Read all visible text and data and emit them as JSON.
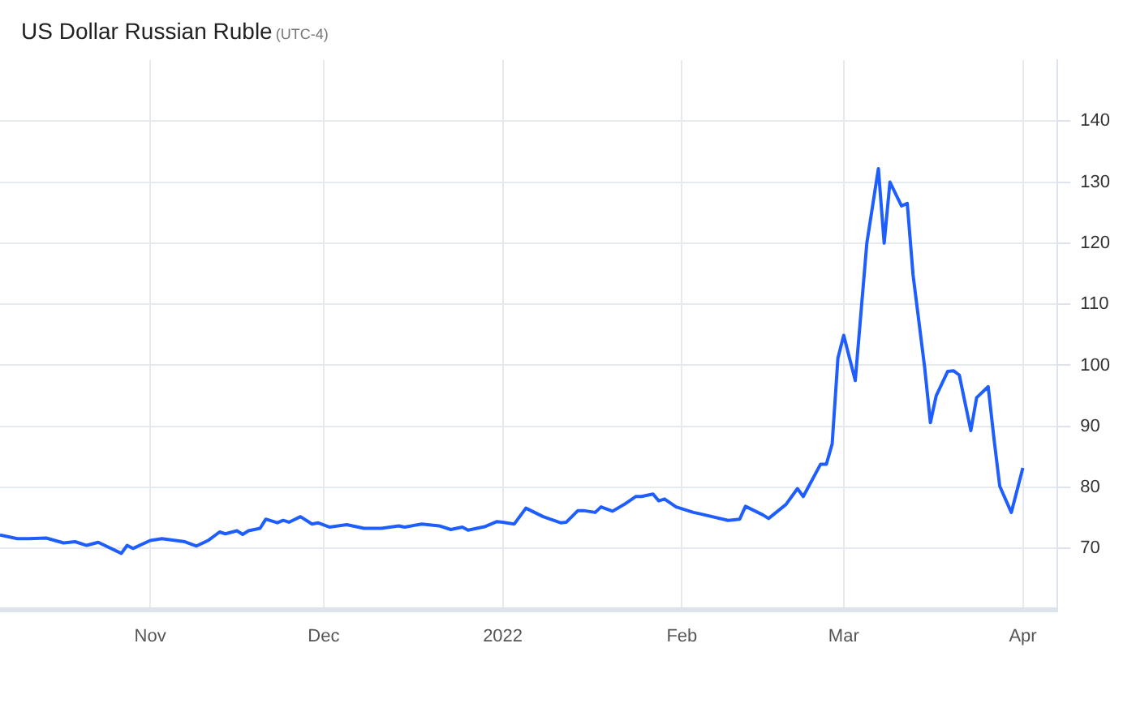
{
  "chart_data": {
    "type": "line",
    "title": "US Dollar Russian Ruble",
    "subtitle": "(UTC-4)",
    "x": [
      "2021-10-06",
      "2021-10-09",
      "2021-10-11",
      "2021-10-14",
      "2021-10-17",
      "2021-10-19",
      "2021-10-21",
      "2021-10-23",
      "2021-10-27",
      "2021-10-28",
      "2021-10-29",
      "2021-11-01",
      "2021-11-03",
      "2021-11-07",
      "2021-11-09",
      "2021-11-11",
      "2021-11-13",
      "2021-11-14",
      "2021-11-16",
      "2021-11-17",
      "2021-11-18",
      "2021-11-20",
      "2021-11-21",
      "2021-11-23",
      "2021-11-24",
      "2021-11-25",
      "2021-11-27",
      "2021-11-29",
      "2021-11-30",
      "2021-12-02",
      "2021-12-05",
      "2021-12-08",
      "2021-12-11",
      "2021-12-14",
      "2021-12-15",
      "2021-12-18",
      "2021-12-21",
      "2021-12-23",
      "2021-12-25",
      "2021-12-26",
      "2021-12-29",
      "2021-12-31",
      "2022-01-01",
      "2022-01-03",
      "2022-01-05",
      "2022-01-08",
      "2022-01-11",
      "2022-01-12",
      "2022-01-14",
      "2022-01-15",
      "2022-01-17",
      "2022-01-18",
      "2022-01-20",
      "2022-01-22",
      "2022-01-24",
      "2022-01-25",
      "2022-01-27",
      "2022-01-28",
      "2022-01-29",
      "2022-01-31",
      "2022-02-03",
      "2022-02-04",
      "2022-02-09",
      "2022-02-11",
      "2022-02-12",
      "2022-02-15",
      "2022-02-16",
      "2022-02-19",
      "2022-02-21",
      "2022-02-22",
      "2022-02-25",
      "2022-02-26",
      "2022-02-27",
      "2022-02-28",
      "2022-03-01",
      "2022-03-03",
      "2022-03-05",
      "2022-03-07",
      "2022-03-08",
      "2022-03-09",
      "2022-03-11",
      "2022-03-12",
      "2022-03-13",
      "2022-03-15",
      "2022-03-16",
      "2022-03-17",
      "2022-03-19",
      "2022-03-20",
      "2022-03-21",
      "2022-03-23",
      "2022-03-24",
      "2022-03-26",
      "2022-03-27",
      "2022-03-28",
      "2022-03-30",
      "2022-04-01"
    ],
    "series": [
      {
        "color": "#1e5eff",
        "values": [
          72.2,
          71.6,
          71.6,
          71.7,
          70.9,
          71.1,
          70.5,
          71.0,
          69.2,
          70.5,
          70.0,
          71.3,
          71.6,
          71.1,
          70.4,
          71.3,
          72.7,
          72.4,
          72.9,
          72.3,
          72.9,
          73.3,
          74.8,
          74.2,
          74.6,
          74.3,
          75.2,
          74.0,
          74.2,
          73.5,
          73.9,
          73.3,
          73.3,
          73.7,
          73.5,
          74.0,
          73.7,
          73.1,
          73.5,
          73.0,
          73.6,
          74.4,
          74.3,
          74.0,
          76.6,
          75.2,
          74.2,
          74.3,
          76.2,
          76.2,
          75.9,
          76.8,
          76.1,
          77.2,
          78.5,
          78.5,
          78.9,
          77.8,
          78.1,
          76.8,
          75.9,
          75.7,
          74.6,
          74.8,
          76.9,
          75.5,
          74.9,
          77.2,
          79.8,
          78.5,
          83.8,
          83.8,
          87.1,
          101.2,
          104.9,
          97.5,
          120.0,
          132.2,
          120.0,
          130.0,
          126.1,
          126.5,
          114.8,
          99.7,
          90.6,
          95.0,
          99.0,
          99.1,
          98.4,
          89.3,
          94.7,
          96.5,
          88.0,
          80.2,
          75.9,
          83.2
        ]
      }
    ],
    "xlim": [
      "2021-10-06",
      "2022-04-07"
    ],
    "xticks": [
      {
        "value": "2021-11-01",
        "label": "Nov"
      },
      {
        "value": "2021-12-01",
        "label": "Dec"
      },
      {
        "value": "2022-01-01",
        "label": "2022"
      },
      {
        "value": "2022-02-01",
        "label": "Feb"
      },
      {
        "value": "2022-03-01",
        "label": "Mar"
      },
      {
        "value": "2022-04-01",
        "label": "Apr"
      }
    ],
    "ylim": [
      60,
      150
    ],
    "yticks": [
      70,
      80,
      90,
      100,
      110,
      120,
      130,
      140
    ],
    "grid": true,
    "marker": "none",
    "line_style": "solid"
  }
}
